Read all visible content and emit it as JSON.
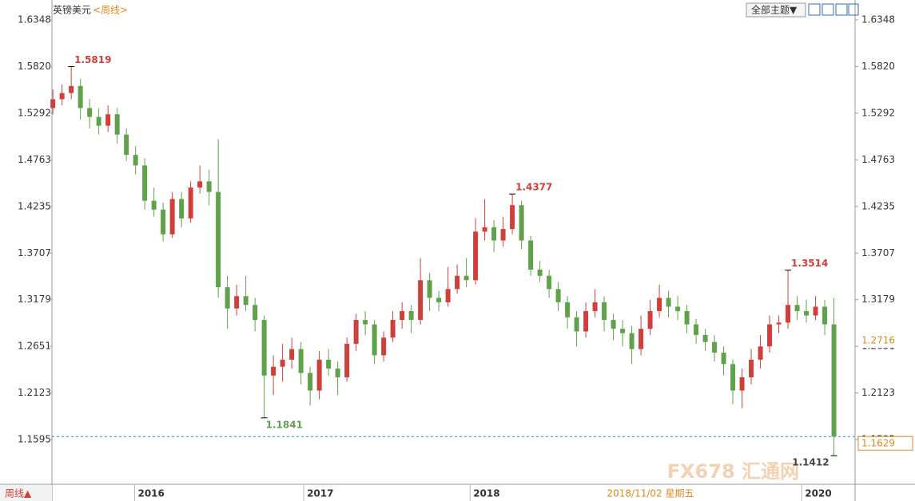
{
  "chart_data": {
    "type": "candlestick",
    "title": "英镑美元",
    "subtitle": "<周线>",
    "theme_button": "全部主题▼",
    "period_button": "周线▲",
    "watermark": "FX678 汇通网",
    "crosshair_date": "2018/11/02 星期五",
    "crosshair_price": 1.2716,
    "up_color": "#d0403a",
    "down_color": "#5fa24a",
    "ylim": [
      1.1107,
      1.6529
    ],
    "yticks": [
      1.6348,
      {
        "value": 1.582,
        "label": "1.5820"
      },
      1.5292,
      1.4763,
      1.4235,
      1.3707,
      1.3179,
      1.2651,
      1.2123,
      1.1595
    ],
    "xlim": [
      -0.1,
      87.3
    ],
    "xticks": [
      {
        "value": 8.9,
        "label": "2016"
      },
      {
        "value": 27.3,
        "label": "2017"
      },
      {
        "value": 45.4,
        "label": "2018"
      },
      {
        "value": 81.5,
        "label": "2020"
      }
    ],
    "open": [
      1.535,
      1.545,
      1.552,
      1.56,
      1.535,
      1.525,
      1.515,
      1.528,
      1.505,
      1.482,
      1.47,
      1.43,
      1.42,
      1.392,
      1.432,
      1.41,
      1.445,
      1.452,
      1.44,
      1.332,
      1.308,
      1.322,
      1.312,
      1.295,
      1.232,
      1.242,
      1.25,
      1.262,
      1.235,
      1.215,
      1.25,
      1.24,
      1.23,
      1.268,
      1.295,
      1.29,
      1.255,
      1.275,
      1.295,
      1.305,
      1.295,
      1.34,
      1.32,
      1.315,
      1.33,
      1.345,
      1.34,
      1.395,
      1.4,
      1.385,
      1.398,
      1.425,
      1.385,
      1.352,
      1.345,
      1.33,
      1.315,
      1.298,
      1.282,
      1.305,
      1.315,
      1.295,
      1.285,
      1.28,
      1.262,
      1.285,
      1.305,
      1.32,
      1.31,
      1.305,
      1.29,
      1.278,
      1.27,
      1.258,
      1.245,
      1.215,
      1.23,
      1.25,
      1.265,
      1.29,
      1.292,
      1.312,
      1.305,
      1.3,
      1.31,
      1.29
    ],
    "close": [
      1.545,
      1.552,
      1.56,
      1.535,
      1.525,
      1.515,
      1.528,
      1.505,
      1.482,
      1.47,
      1.43,
      1.42,
      1.392,
      1.432,
      1.41,
      1.445,
      1.452,
      1.44,
      1.332,
      1.308,
      1.322,
      1.312,
      1.295,
      1.232,
      1.242,
      1.25,
      1.262,
      1.235,
      1.215,
      1.25,
      1.24,
      1.23,
      1.268,
      1.295,
      1.29,
      1.255,
      1.275,
      1.295,
      1.305,
      1.295,
      1.34,
      1.32,
      1.315,
      1.33,
      1.345,
      1.34,
      1.395,
      1.4,
      1.385,
      1.398,
      1.425,
      1.385,
      1.352,
      1.345,
      1.33,
      1.315,
      1.298,
      1.282,
      1.305,
      1.315,
      1.295,
      1.285,
      1.28,
      1.262,
      1.285,
      1.305,
      1.32,
      1.31,
      1.305,
      1.29,
      1.278,
      1.27,
      1.258,
      1.245,
      1.215,
      1.23,
      1.25,
      1.265,
      1.29,
      1.292,
      1.312,
      1.305,
      1.3,
      1.31,
      1.29,
      1.1629
    ],
    "high": [
      1.556,
      1.562,
      1.5819,
      1.568,
      1.545,
      1.535,
      1.538,
      1.535,
      1.512,
      1.492,
      1.478,
      1.445,
      1.428,
      1.44,
      1.44,
      1.452,
      1.47,
      1.465,
      1.5,
      1.345,
      1.335,
      1.345,
      1.32,
      1.3,
      1.255,
      1.268,
      1.275,
      1.27,
      1.242,
      1.26,
      1.262,
      1.248,
      1.275,
      1.302,
      1.305,
      1.295,
      1.282,
      1.305,
      1.315,
      1.312,
      1.365,
      1.348,
      1.328,
      1.355,
      1.358,
      1.365,
      1.41,
      1.432,
      1.408,
      1.412,
      1.4377,
      1.43,
      1.39,
      1.362,
      1.352,
      1.338,
      1.322,
      1.305,
      1.315,
      1.33,
      1.322,
      1.302,
      1.295,
      1.288,
      1.3,
      1.318,
      1.335,
      1.328,
      1.322,
      1.312,
      1.296,
      1.285,
      1.278,
      1.265,
      1.25,
      1.24,
      1.262,
      1.278,
      1.3,
      1.3,
      1.3514,
      1.322,
      1.318,
      1.322,
      1.318,
      1.32
    ],
    "low": [
      1.528,
      1.538,
      1.545,
      1.522,
      1.512,
      1.505,
      1.508,
      1.495,
      1.475,
      1.46,
      1.42,
      1.412,
      1.384,
      1.388,
      1.4,
      1.405,
      1.438,
      1.425,
      1.32,
      1.285,
      1.3,
      1.305,
      1.282,
      1.1841,
      1.21,
      1.225,
      1.24,
      1.222,
      1.198,
      1.205,
      1.232,
      1.21,
      1.225,
      1.26,
      1.278,
      1.245,
      1.248,
      1.27,
      1.285,
      1.28,
      1.29,
      1.305,
      1.305,
      1.31,
      1.325,
      1.332,
      1.335,
      1.385,
      1.372,
      1.378,
      1.392,
      1.375,
      1.345,
      1.338,
      1.32,
      1.305,
      1.285,
      1.265,
      1.275,
      1.298,
      1.282,
      1.272,
      1.265,
      1.245,
      1.255,
      1.278,
      1.298,
      1.298,
      1.295,
      1.28,
      1.268,
      1.26,
      1.248,
      1.232,
      1.2,
      1.195,
      1.222,
      1.24,
      1.258,
      1.28,
      1.285,
      1.295,
      1.292,
      1.295,
      1.278,
      1.1412
    ]
  }
}
